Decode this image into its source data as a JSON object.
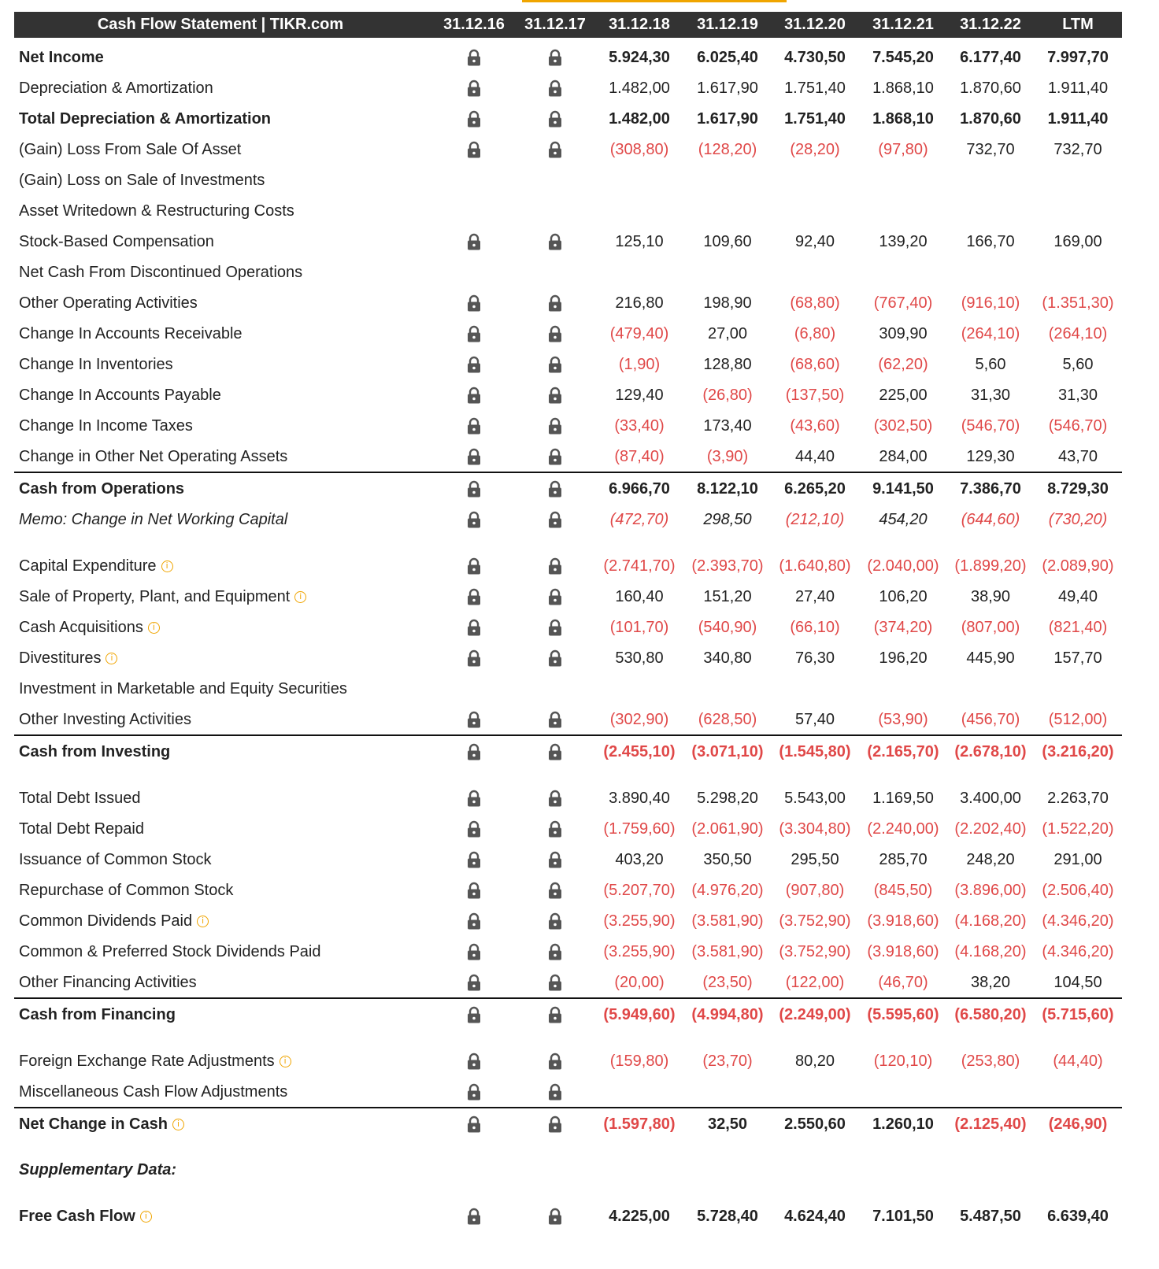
{
  "header": {
    "title": "Cash Flow Statement | TIKR.com",
    "columns": [
      "31.12.16",
      "31.12.17",
      "31.12.18",
      "31.12.19",
      "31.12.20",
      "31.12.21",
      "31.12.22",
      "LTM"
    ]
  },
  "sections": [
    {
      "rows": [
        {
          "label": "Net Income",
          "style": "bold",
          "locked": true,
          "values": [
            "5.924,30",
            "6.025,40",
            "4.730,50",
            "7.545,20",
            "6.177,40",
            "7.997,70"
          ]
        },
        {
          "label": "Depreciation & Amortization",
          "locked": true,
          "values": [
            "1.482,00",
            "1.617,90",
            "1.751,40",
            "1.868,10",
            "1.870,60",
            "1.911,40"
          ]
        },
        {
          "label": "Total Depreciation & Amortization",
          "style": "bold",
          "locked": true,
          "values": [
            "1.482,00",
            "1.617,90",
            "1.751,40",
            "1.868,10",
            "1.870,60",
            "1.911,40"
          ]
        },
        {
          "label": "(Gain) Loss From Sale Of Asset",
          "locked": true,
          "values": [
            "(308,80)",
            "(128,20)",
            "(28,20)",
            "(97,80)",
            "732,70",
            "732,70"
          ]
        },
        {
          "label": "(Gain) Loss on Sale of Investments",
          "locked": false
        },
        {
          "label": "Asset Writedown & Restructuring Costs",
          "locked": false
        },
        {
          "label": "Stock-Based Compensation",
          "locked": true,
          "values": [
            "125,10",
            "109,60",
            "92,40",
            "139,20",
            "166,70",
            "169,00"
          ]
        },
        {
          "label": "Net Cash From Discontinued Operations",
          "locked": false
        },
        {
          "label": "Other Operating Activities",
          "locked": true,
          "values": [
            "216,80",
            "198,90",
            "(68,80)",
            "(767,40)",
            "(916,10)",
            "(1.351,30)"
          ]
        },
        {
          "label": "Change In Accounts Receivable",
          "locked": true,
          "values": [
            "(479,40)",
            "27,00",
            "(6,80)",
            "309,90",
            "(264,10)",
            "(264,10)"
          ]
        },
        {
          "label": "Change In Inventories",
          "locked": true,
          "values": [
            "(1,90)",
            "128,80",
            "(68,60)",
            "(62,20)",
            "5,60",
            "5,60"
          ]
        },
        {
          "label": "Change In Accounts Payable",
          "locked": true,
          "values": [
            "129,40",
            "(26,80)",
            "(137,50)",
            "225,00",
            "31,30",
            "31,30"
          ]
        },
        {
          "label": "Change In Income Taxes",
          "locked": true,
          "values": [
            "(33,40)",
            "173,40",
            "(43,60)",
            "(302,50)",
            "(546,70)",
            "(546,70)"
          ]
        },
        {
          "label": "Change in Other Net Operating Assets",
          "locked": true,
          "values": [
            "(87,40)",
            "(3,90)",
            "44,40",
            "284,00",
            "129,30",
            "43,70"
          ]
        }
      ],
      "totals": [
        {
          "label": "Cash from Operations",
          "style": "bold",
          "locked": true,
          "values": [
            "6.966,70",
            "8.122,10",
            "6.265,20",
            "9.141,50",
            "7.386,70",
            "8.729,30"
          ]
        },
        {
          "label": "Memo: Change in Net Working Capital",
          "style": "italic",
          "locked": true,
          "values": [
            "(472,70)",
            "298,50",
            "(212,10)",
            "454,20",
            "(644,60)",
            "(730,20)"
          ]
        }
      ]
    },
    {
      "rows": [
        {
          "label": "Capital Expenditure",
          "info": true,
          "locked": true,
          "values": [
            "(2.741,70)",
            "(2.393,70)",
            "(1.640,80)",
            "(2.040,00)",
            "(1.899,20)",
            "(2.089,90)"
          ]
        },
        {
          "label": "Sale of Property, Plant, and Equipment",
          "info": true,
          "locked": true,
          "values": [
            "160,40",
            "151,20",
            "27,40",
            "106,20",
            "38,90",
            "49,40"
          ]
        },
        {
          "label": "Cash Acquisitions",
          "info": true,
          "locked": true,
          "values": [
            "(101,70)",
            "(540,90)",
            "(66,10)",
            "(374,20)",
            "(807,00)",
            "(821,40)"
          ]
        },
        {
          "label": "Divestitures",
          "info": true,
          "locked": true,
          "values": [
            "530,80",
            "340,80",
            "76,30",
            "196,20",
            "445,90",
            "157,70"
          ]
        },
        {
          "label": "Investment in Marketable and Equity Securities",
          "locked": false
        },
        {
          "label": "Other Investing Activities",
          "locked": true,
          "values": [
            "(302,90)",
            "(628,50)",
            "57,40",
            "(53,90)",
            "(456,70)",
            "(512,00)"
          ]
        }
      ],
      "totals": [
        {
          "label": "Cash from Investing",
          "style": "bold",
          "locked": true,
          "values": [
            "(2.455,10)",
            "(3.071,10)",
            "(1.545,80)",
            "(2.165,70)",
            "(2.678,10)",
            "(3.216,20)"
          ]
        }
      ]
    },
    {
      "rows": [
        {
          "label": "Total Debt Issued",
          "locked": true,
          "values": [
            "3.890,40",
            "5.298,20",
            "5.543,00",
            "1.169,50",
            "3.400,00",
            "2.263,70"
          ]
        },
        {
          "label": "Total Debt Repaid",
          "locked": true,
          "values": [
            "(1.759,60)",
            "(2.061,90)",
            "(3.304,80)",
            "(2.240,00)",
            "(2.202,40)",
            "(1.522,20)"
          ]
        },
        {
          "label": "Issuance of Common Stock",
          "locked": true,
          "values": [
            "403,20",
            "350,50",
            "295,50",
            "285,70",
            "248,20",
            "291,00"
          ]
        },
        {
          "label": "Repurchase of Common Stock",
          "locked": true,
          "values": [
            "(5.207,70)",
            "(4.976,20)",
            "(907,80)",
            "(845,50)",
            "(3.896,00)",
            "(2.506,40)"
          ]
        },
        {
          "label": "Common Dividends Paid",
          "info": true,
          "locked": true,
          "values": [
            "(3.255,90)",
            "(3.581,90)",
            "(3.752,90)",
            "(3.918,60)",
            "(4.168,20)",
            "(4.346,20)"
          ]
        },
        {
          "label": "Common & Preferred Stock Dividends Paid",
          "locked": true,
          "values": [
            "(3.255,90)",
            "(3.581,90)",
            "(3.752,90)",
            "(3.918,60)",
            "(4.168,20)",
            "(4.346,20)"
          ]
        },
        {
          "label": "Other Financing Activities",
          "locked": true,
          "values": [
            "(20,00)",
            "(23,50)",
            "(122,00)",
            "(46,70)",
            "38,20",
            "104,50"
          ]
        }
      ],
      "totals": [
        {
          "label": "Cash from Financing",
          "style": "bold",
          "locked": true,
          "values": [
            "(5.949,60)",
            "(4.994,80)",
            "(2.249,00)",
            "(5.595,60)",
            "(6.580,20)",
            "(5.715,60)"
          ]
        }
      ]
    },
    {
      "rows": [
        {
          "label": "Foreign Exchange Rate Adjustments",
          "info": true,
          "locked": true,
          "values": [
            "(159,80)",
            "(23,70)",
            "80,20",
            "(120,10)",
            "(253,80)",
            "(44,40)"
          ]
        },
        {
          "label": "Miscellaneous Cash Flow Adjustments",
          "locked": true
        }
      ],
      "totals": [
        {
          "label": "Net Change in Cash",
          "style": "bold",
          "info": true,
          "locked": true,
          "values": [
            "(1.597,80)",
            "32,50",
            "2.550,60",
            "1.260,10",
            "(2.125,40)",
            "(246,90)"
          ]
        }
      ]
    }
  ],
  "supplementary": {
    "title": "Supplementary Data:",
    "rows": [
      {
        "label": "Free Cash Flow",
        "style": "bold",
        "info": true,
        "locked": true,
        "values": [
          "4.225,00",
          "5.728,40",
          "4.624,40",
          "7.101,50",
          "5.487,50",
          "6.639,40"
        ]
      }
    ]
  }
}
